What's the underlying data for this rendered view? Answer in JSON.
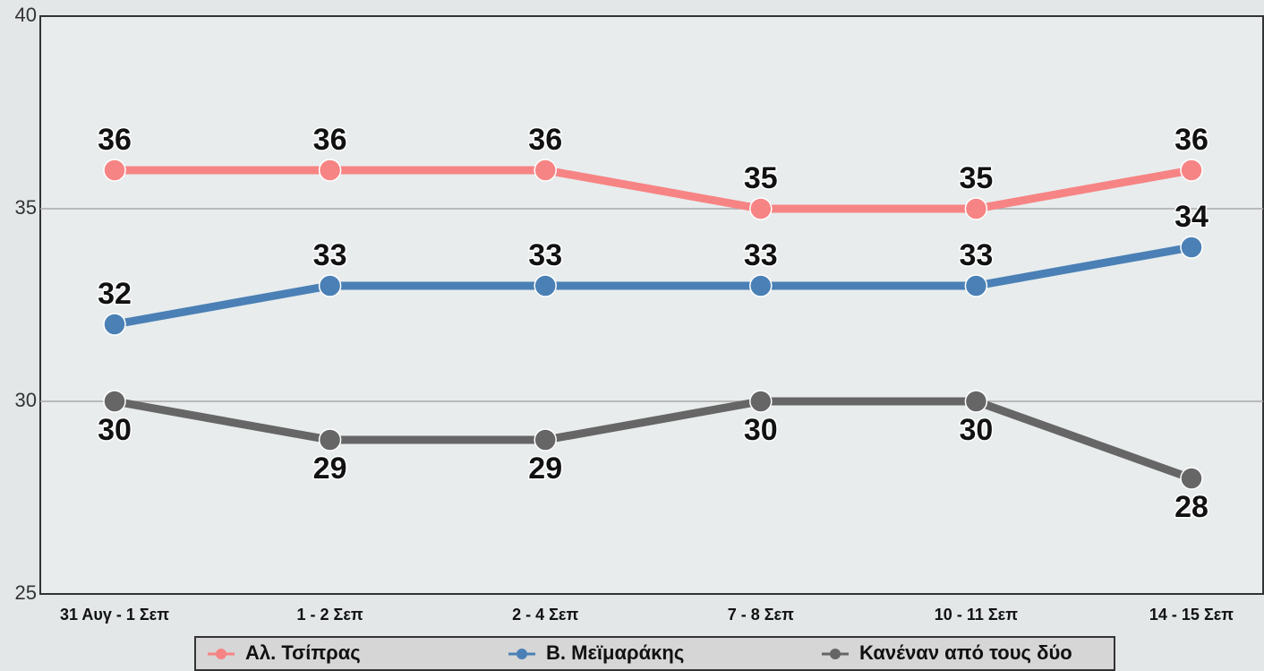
{
  "chart_data": {
    "type": "line",
    "categories": [
      "31 Αυγ - 1 Σεπ",
      "1 - 2 Σεπ",
      "2 - 4 Σεπ",
      "7 - 8 Σεπ",
      "10 - 11 Σεπ",
      "14 - 15 Σεπ"
    ],
    "series": [
      {
        "name": "Αλ. Τσίπρας",
        "color": "#f78484",
        "values": [
          36,
          36,
          36,
          35,
          35,
          36
        ]
      },
      {
        "name": "Β. Μεϊμαράκης",
        "color": "#4a80b5",
        "values": [
          32,
          33,
          33,
          33,
          33,
          34
        ]
      },
      {
        "name": "Κανέναν από τους δύο",
        "color": "#666666",
        "values": [
          30,
          29,
          29,
          30,
          30,
          28
        ]
      }
    ],
    "ylim": [
      25,
      40
    ],
    "yticks": [
      25,
      30,
      35,
      40
    ],
    "grid": true
  }
}
